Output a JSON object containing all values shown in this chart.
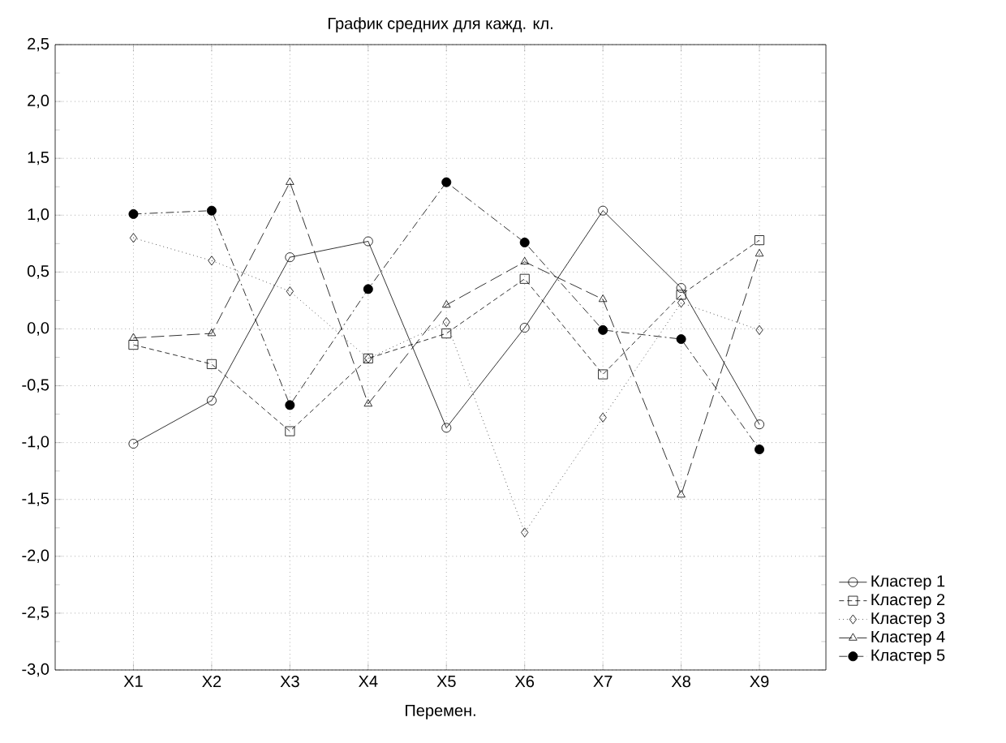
{
  "chart_data": {
    "type": "line",
    "title": "График средних для кажд. кл.",
    "xlabel": "Перемен.",
    "categories": [
      "X1",
      "X2",
      "X3",
      "X4",
      "X5",
      "X6",
      "X7",
      "X8",
      "X9"
    ],
    "series": [
      {
        "name": "Кластер  1",
        "color": "#000000",
        "marker": "circle",
        "line_style": "solid",
        "values": [
          -1.01,
          -0.63,
          0.63,
          0.77,
          -0.87,
          0.01,
          1.04,
          0.36,
          -0.84
        ]
      },
      {
        "name": "Кластер  2",
        "color": "#000000",
        "marker": "square",
        "line_style": "dashed",
        "values": [
          -0.14,
          -0.31,
          -0.9,
          -0.26,
          -0.04,
          0.44,
          -0.4,
          0.3,
          0.78
        ]
      },
      {
        "name": "Кластер  3",
        "color": "#000000",
        "marker": "diamond",
        "line_style": "dotted",
        "values": [
          0.8,
          0.6,
          0.33,
          -0.26,
          0.06,
          -1.79,
          -0.78,
          0.23,
          -0.01
        ]
      },
      {
        "name": "Кластер  4",
        "color": "#000000",
        "marker": "triangle",
        "line_style": "long dashed",
        "values": [
          -0.08,
          -0.04,
          1.29,
          -0.66,
          0.21,
          0.59,
          0.26,
          -1.46,
          0.66
        ]
      },
      {
        "name": "Кластер  5",
        "color": "#000000",
        "marker": "filled circle",
        "line_style": "dashdot",
        "values": [
          1.01,
          1.04,
          -0.67,
          0.35,
          1.29,
          0.76,
          -0.01,
          -0.09,
          -1.06
        ]
      }
    ],
    "ylim": [
      -3.0,
      2.5
    ],
    "yticks": [
      {
        "value": -3.0,
        "label": "-3,0"
      },
      {
        "value": -2.5,
        "label": "-2,5"
      },
      {
        "value": -2.0,
        "label": "-2,0"
      },
      {
        "value": -1.5,
        "label": "-1,5"
      },
      {
        "value": -1.0,
        "label": "-1,0"
      },
      {
        "value": -0.5,
        "label": "-0,5"
      },
      {
        "value": 0.0,
        "label": "0,0"
      },
      {
        "value": 0.5,
        "label": "0,5"
      },
      {
        "value": 1.0,
        "label": "1,0"
      },
      {
        "value": 1.5,
        "label": "1,5"
      },
      {
        "value": 2.0,
        "label": "2,0"
      },
      {
        "value": 2.5,
        "label": "2,5"
      }
    ],
    "grid": true,
    "legend": "bottom right"
  }
}
